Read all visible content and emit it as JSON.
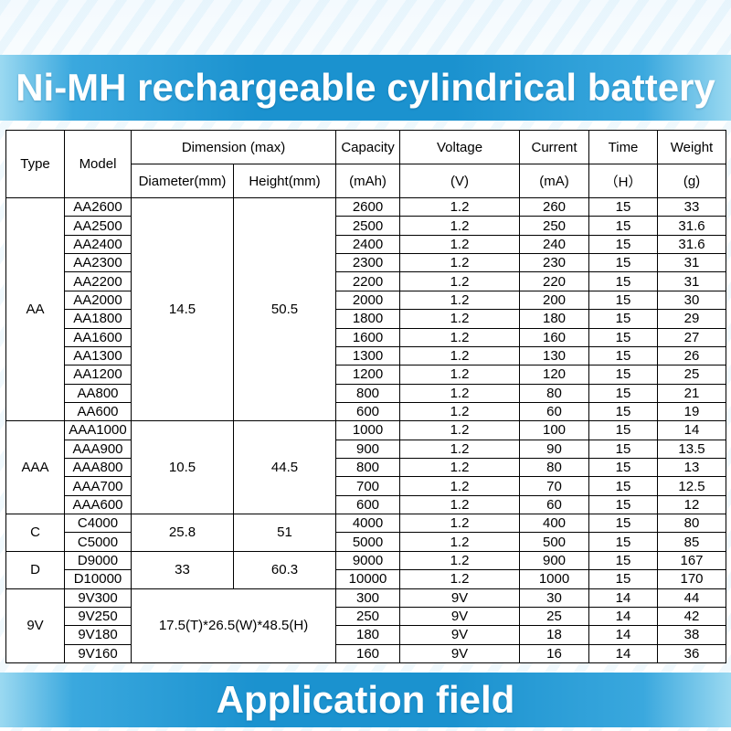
{
  "banner": {
    "title": "Ni-MH rechargeable cylindrical battery"
  },
  "footer": {
    "title": "Application field"
  },
  "colors": {
    "banner_blue": "#1b92cf",
    "banner_edge_blue": "#9bd9f1",
    "banner_text": "#ffffff",
    "table_border": "#000000",
    "table_text": "#000000"
  },
  "table": {
    "headers": {
      "type": "Type",
      "model": "Model",
      "dimension": "Dimension (max)",
      "diameter": "Diameter(mm)",
      "height": "Height(mm)",
      "capacity": "Capacity",
      "capacity_unit": "(mAh)",
      "voltage": "Voltage",
      "voltage_unit": "(V)",
      "current": "Current",
      "current_unit": "(mA)",
      "time": "Time",
      "time_unit": "（H）",
      "weight": "Weight",
      "weight_unit": "(g)"
    },
    "groups": [
      {
        "type": "AA",
        "diameter": "14.5",
        "height": "50.5",
        "rows": [
          {
            "model": "AA2600",
            "capacity": "2600",
            "voltage": "1.2",
            "current": "260",
            "time": "15",
            "weight": "33"
          },
          {
            "model": "AA2500",
            "capacity": "2500",
            "voltage": "1.2",
            "current": "250",
            "time": "15",
            "weight": "31.6"
          },
          {
            "model": "AA2400",
            "capacity": "2400",
            "voltage": "1.2",
            "current": "240",
            "time": "15",
            "weight": "31.6"
          },
          {
            "model": "AA2300",
            "capacity": "2300",
            "voltage": "1.2",
            "current": "230",
            "time": "15",
            "weight": "31"
          },
          {
            "model": "AA2200",
            "capacity": "2200",
            "voltage": "1.2",
            "current": "220",
            "time": "15",
            "weight": "31"
          },
          {
            "model": "AA2000",
            "capacity": "2000",
            "voltage": "1.2",
            "current": "200",
            "time": "15",
            "weight": "30"
          },
          {
            "model": "AA1800",
            "capacity": "1800",
            "voltage": "1.2",
            "current": "180",
            "time": "15",
            "weight": "29"
          },
          {
            "model": "AA1600",
            "capacity": "1600",
            "voltage": "1.2",
            "current": "160",
            "time": "15",
            "weight": "27"
          },
          {
            "model": "AA1300",
            "capacity": "1300",
            "voltage": "1.2",
            "current": "130",
            "time": "15",
            "weight": "26"
          },
          {
            "model": "AA1200",
            "capacity": "1200",
            "voltage": "1.2",
            "current": "120",
            "time": "15",
            "weight": "25"
          },
          {
            "model": "AA800",
            "capacity": "800",
            "voltage": "1.2",
            "current": "80",
            "time": "15",
            "weight": "21"
          },
          {
            "model": "AA600",
            "capacity": "600",
            "voltage": "1.2",
            "current": "60",
            "time": "15",
            "weight": "19"
          }
        ]
      },
      {
        "type": "AAA",
        "diameter": "10.5",
        "height": "44.5",
        "rows": [
          {
            "model": "AAA1000",
            "capacity": "1000",
            "voltage": "1.2",
            "current": "100",
            "time": "15",
            "weight": "14"
          },
          {
            "model": "AAA900",
            "capacity": "900",
            "voltage": "1.2",
            "current": "90",
            "time": "15",
            "weight": "13.5"
          },
          {
            "model": "AAA800",
            "capacity": "800",
            "voltage": "1.2",
            "current": "80",
            "time": "15",
            "weight": "13"
          },
          {
            "model": "AAA700",
            "capacity": "700",
            "voltage": "1.2",
            "current": "70",
            "time": "15",
            "weight": "12.5"
          },
          {
            "model": "AAA600",
            "capacity": "600",
            "voltage": "1.2",
            "current": "60",
            "time": "15",
            "weight": "12"
          }
        ]
      },
      {
        "type": "C",
        "diameter": "25.8",
        "height": "51",
        "rows": [
          {
            "model": "C4000",
            "capacity": "4000",
            "voltage": "1.2",
            "current": "400",
            "time": "15",
            "weight": "80"
          },
          {
            "model": "C5000",
            "capacity": "5000",
            "voltage": "1.2",
            "current": "500",
            "time": "15",
            "weight": "85"
          }
        ]
      },
      {
        "type": "D",
        "diameter": "33",
        "height": "60.3",
        "rows": [
          {
            "model": "D9000",
            "capacity": "9000",
            "voltage": "1.2",
            "current": "900",
            "time": "15",
            "weight": "167"
          },
          {
            "model": "D10000",
            "capacity": "10000",
            "voltage": "1.2",
            "current": "1000",
            "time": "15",
            "weight": "170"
          }
        ]
      },
      {
        "type": "9V",
        "dimension": "17.5(T)*26.5(W)*48.5(H)",
        "rows": [
          {
            "model": "9V300",
            "capacity": "300",
            "voltage": "9V",
            "current": "30",
            "time": "14",
            "weight": "44"
          },
          {
            "model": "9V250",
            "capacity": "250",
            "voltage": "9V",
            "current": "25",
            "time": "14",
            "weight": "42"
          },
          {
            "model": "9V180",
            "capacity": "180",
            "voltage": "9V",
            "current": "18",
            "time": "14",
            "weight": "38"
          },
          {
            "model": "9V160",
            "capacity": "160",
            "voltage": "9V",
            "current": "16",
            "time": "14",
            "weight": "36"
          }
        ]
      }
    ]
  }
}
